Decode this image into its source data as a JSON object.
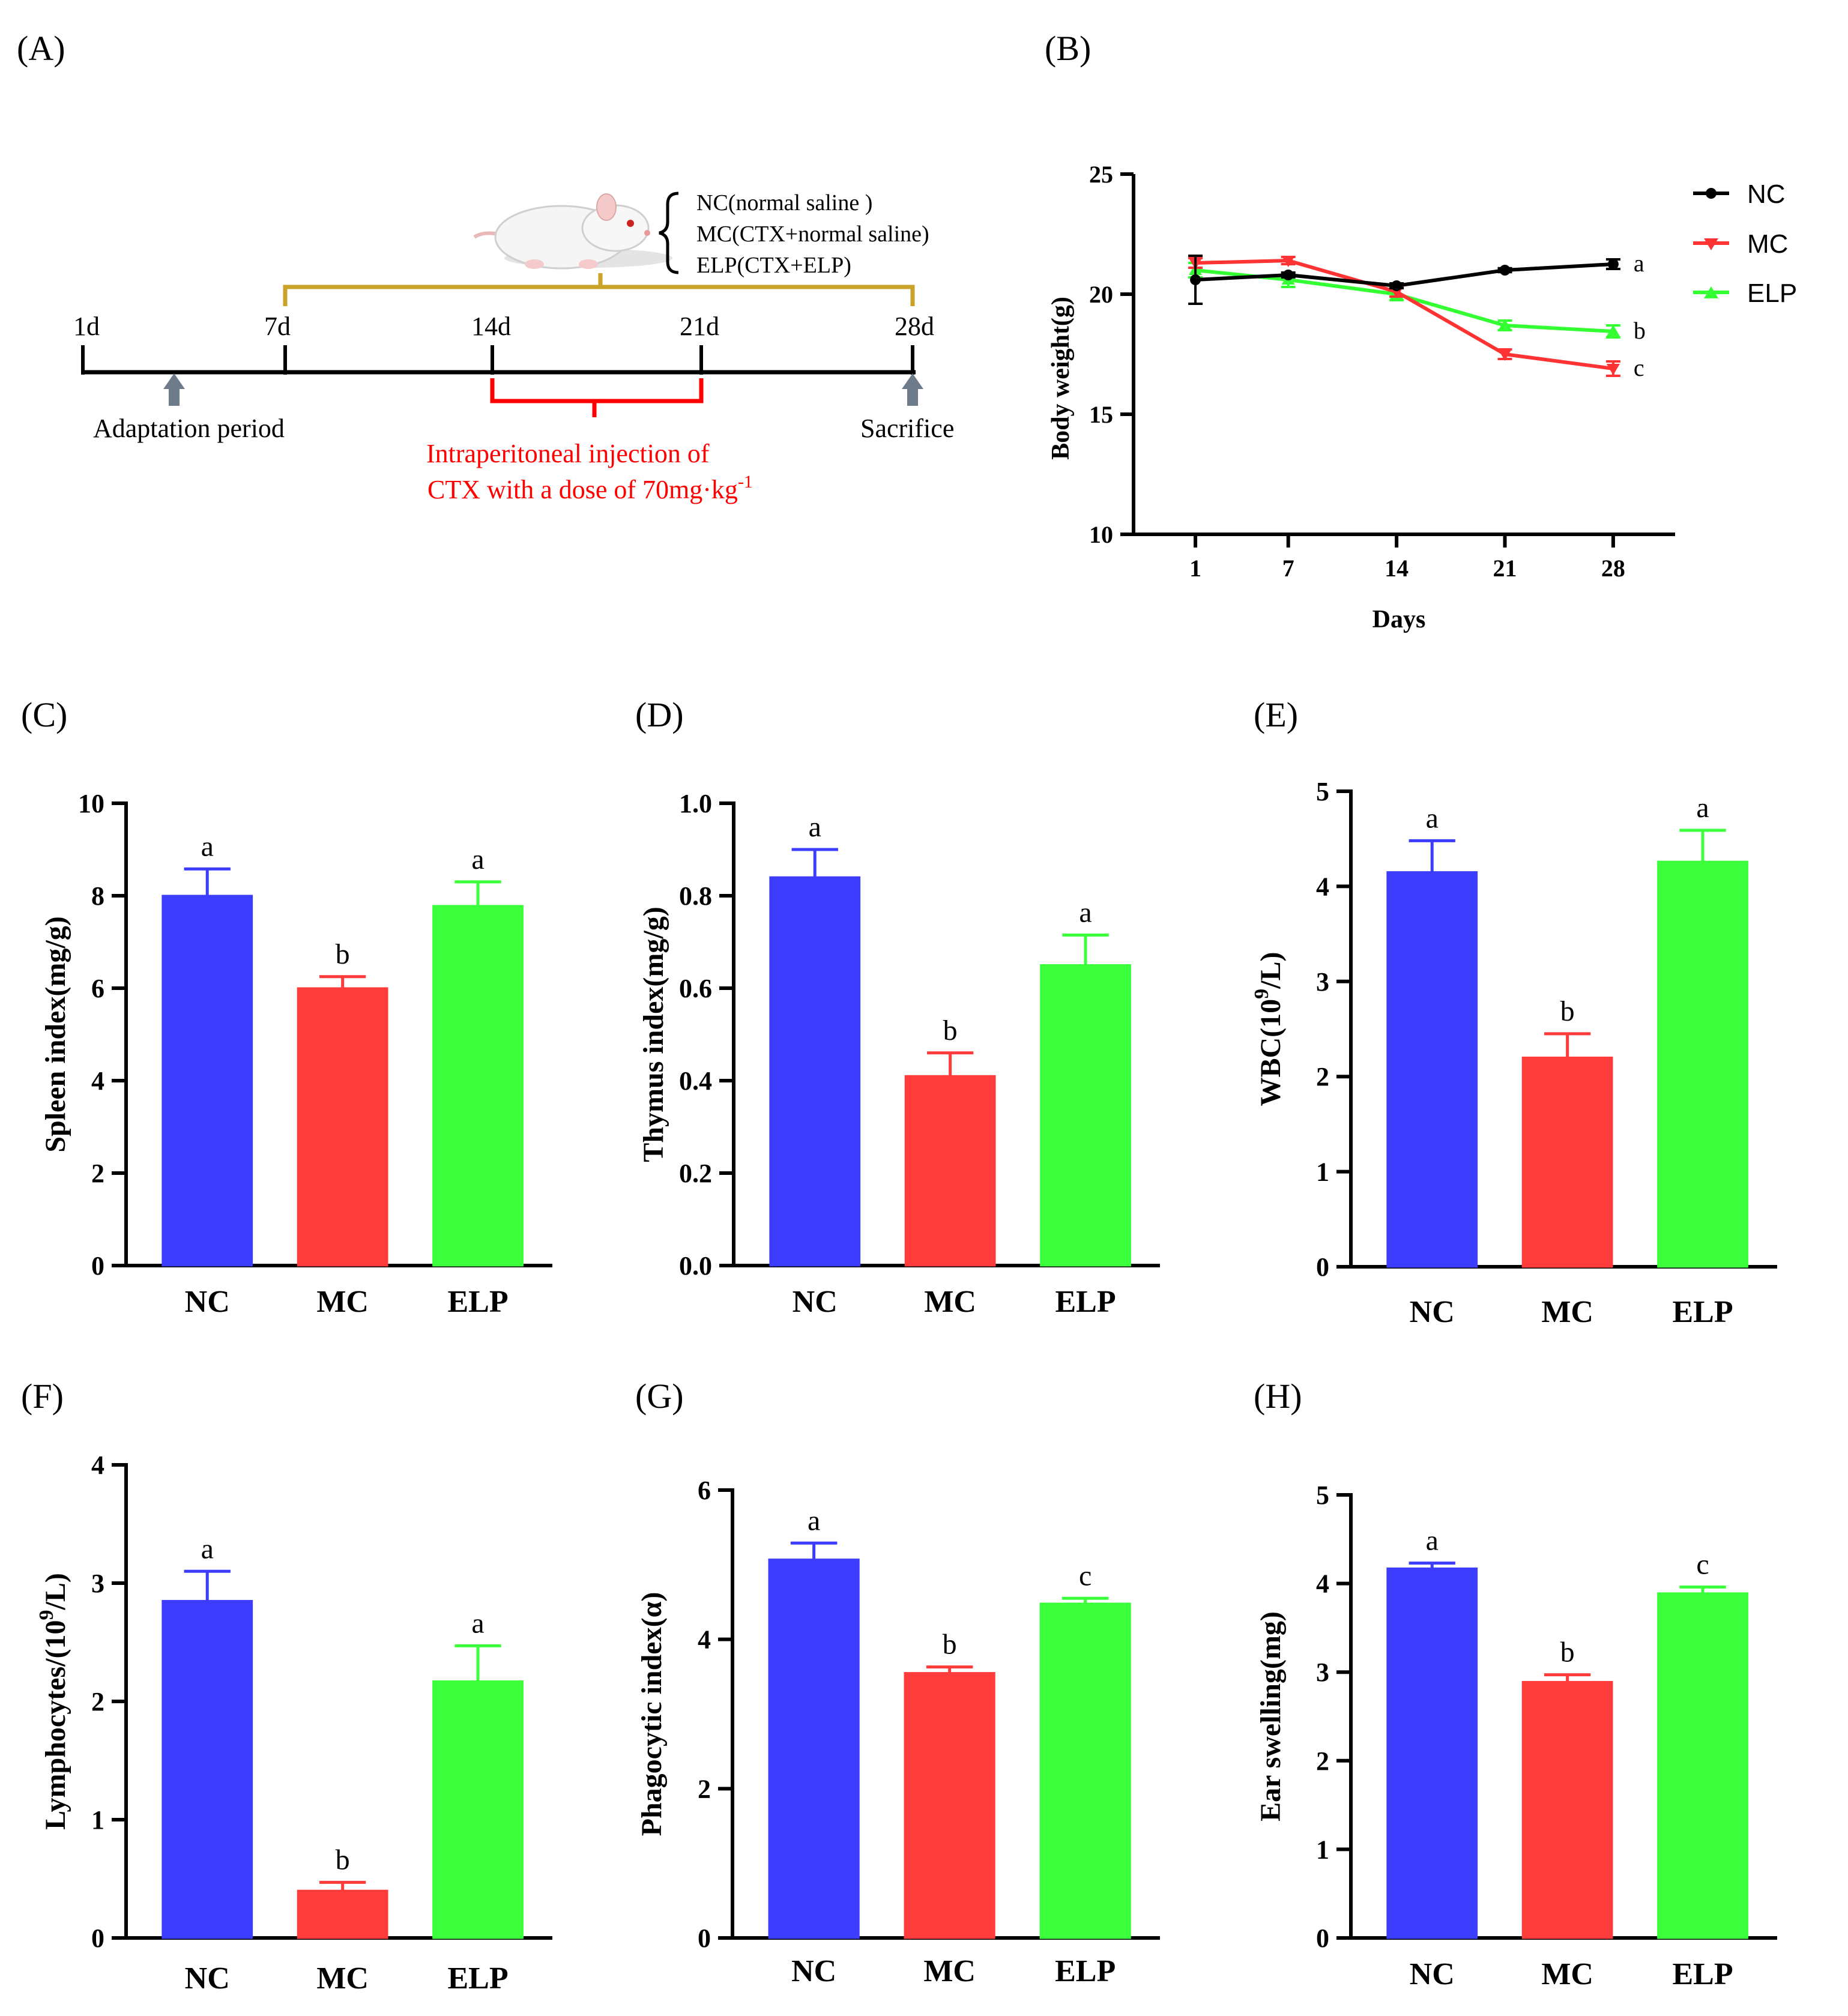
{
  "colors": {
    "NC": "#3d3dff",
    "MC": "#ff3b3b",
    "ELP": "#3bff3b",
    "line_NC": "#000000",
    "line_MC": "#ff3333",
    "line_ELP": "#33ff33",
    "timeline_gold": "#c9a227",
    "timeline_red": "#ff0000",
    "arrow_gray": "#6e7b8b",
    "axis": "#000000"
  },
  "timeline": {
    "panel_label": "(A)",
    "days": [
      "1d",
      "7d",
      "14d",
      "21d",
      "28d"
    ],
    "adaptation_label": "Adaptation period",
    "sacrifice_label": "Sacrifice",
    "injection_line1": "Intraperitoneal injection of",
    "injection_line2": "CTX with a dose of 70mg·kg",
    "injection_sup": "-1",
    "groups": [
      "NC(normal saline )",
      "MC(CTX+normal saline)",
      "ELP(CTX+ELP)"
    ],
    "mouse_icon": "mouse-icon"
  },
  "chart_data": [
    {
      "panel": "(B)",
      "type": "line",
      "xlabel": "Days",
      "ylabel": "Body weight(g)",
      "x": [
        1,
        7,
        14,
        21,
        28
      ],
      "xticks": [
        "1",
        "7",
        "14",
        "21",
        "28"
      ],
      "yticks": [
        "10",
        "15",
        "20",
        "25"
      ],
      "ylim": [
        10,
        25
      ],
      "series": [
        {
          "name": "NC",
          "values": [
            20.6,
            20.8,
            20.35,
            21.0,
            21.25
          ],
          "errors": [
            1.0,
            0.1,
            0.1,
            0.08,
            0.2
          ],
          "letter": "a",
          "marker": "circle"
        },
        {
          "name": "MC",
          "values": [
            21.3,
            21.4,
            20.1,
            17.5,
            16.9
          ],
          "errors": [
            0.2,
            0.15,
            0.2,
            0.2,
            0.3
          ],
          "letter": "c",
          "marker": "triangle-down"
        },
        {
          "name": "ELP",
          "values": [
            21.0,
            20.6,
            20.0,
            18.7,
            18.45
          ],
          "errors": [
            0.3,
            0.3,
            0.25,
            0.2,
            0.25
          ],
          "letter": "b",
          "marker": "triangle-up"
        }
      ],
      "legend": [
        "NC",
        "MC",
        "ELP"
      ]
    },
    {
      "panel": "(C)",
      "type": "bar",
      "ylabel": "Spleen index(mg/g)",
      "categories": [
        "NC",
        "MC",
        "ELP"
      ],
      "values": [
        8.0,
        6.0,
        7.78
      ],
      "errors": [
        0.58,
        0.25,
        0.52
      ],
      "letters": [
        "a",
        "b",
        "a"
      ],
      "ylim": [
        0,
        10
      ],
      "yticks": [
        "0",
        "2",
        "4",
        "6",
        "8",
        "10"
      ]
    },
    {
      "panel": "(D)",
      "type": "bar",
      "ylabel": "Thymus index(mg/g)",
      "categories": [
        "NC",
        "MC",
        "ELP"
      ],
      "values": [
        0.84,
        0.41,
        0.65
      ],
      "errors": [
        0.06,
        0.05,
        0.065
      ],
      "letters": [
        "a",
        "b",
        "a"
      ],
      "ylim": [
        0,
        1.0
      ],
      "yticks": [
        "0.0",
        "0.2",
        "0.4",
        "0.6",
        "0.8",
        "1.0"
      ]
    },
    {
      "panel": "(E)",
      "type": "bar",
      "ylabel": "WBC(10",
      "ylabel_sup": "9",
      "ylabel_end": "/L)",
      "categories": [
        "NC",
        "MC",
        "ELP"
      ],
      "values": [
        4.15,
        2.2,
        4.26
      ],
      "errors": [
        0.33,
        0.25,
        0.33
      ],
      "letters": [
        "a",
        "b",
        "a"
      ],
      "ylim": [
        0,
        5
      ],
      "yticks": [
        "0",
        "1",
        "2",
        "3",
        "4",
        "5"
      ]
    },
    {
      "panel": "(F)",
      "type": "bar",
      "ylabel": "Lymphocytes/(10",
      "ylabel_sup": "9",
      "ylabel_end": "/L)",
      "categories": [
        "NC",
        "MC",
        "ELP"
      ],
      "values": [
        2.85,
        0.4,
        2.17
      ],
      "errors": [
        0.25,
        0.07,
        0.3
      ],
      "letters": [
        "a",
        "b",
        "a"
      ],
      "ylim": [
        0,
        4
      ],
      "yticks": [
        "0",
        "1",
        "2",
        "3",
        "4"
      ]
    },
    {
      "panel": "(G)",
      "type": "bar",
      "ylabel": "Phagocytic index(α)",
      "categories": [
        "NC",
        "MC",
        "ELP"
      ],
      "values": [
        5.07,
        3.55,
        4.48
      ],
      "errors": [
        0.22,
        0.08,
        0.07
      ],
      "letters": [
        "a",
        "b",
        "c"
      ],
      "ylim": [
        0,
        6
      ],
      "yticks": [
        "0",
        "2",
        "4",
        "6"
      ]
    },
    {
      "panel": "(H)",
      "type": "bar",
      "ylabel": "Ear swelling(mg)",
      "categories": [
        "NC",
        "MC",
        "ELP"
      ],
      "values": [
        4.17,
        2.89,
        3.89
      ],
      "errors": [
        0.06,
        0.08,
        0.07
      ],
      "letters": [
        "a",
        "b",
        "c"
      ],
      "ylim": [
        0,
        5
      ],
      "yticks": [
        "0",
        "1",
        "2",
        "3",
        "4",
        "5"
      ]
    }
  ]
}
